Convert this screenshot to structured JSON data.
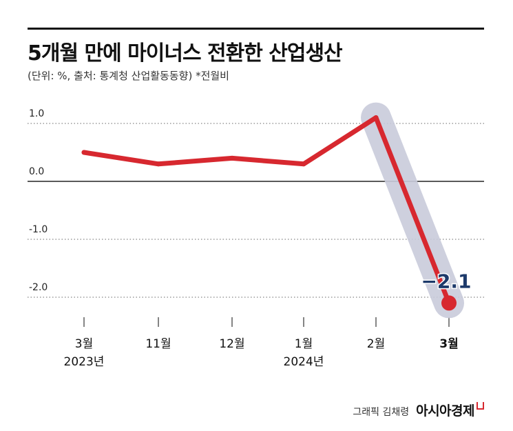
{
  "header": {
    "title": "5개월 만에 마이너스 전환한 산업생산",
    "subtitle": "(단위: %, 출처: 통계청 산업활동동향) *전월비"
  },
  "chart_data": {
    "type": "line",
    "title": "5개월 만에 마이너스 전환한 산업생산",
    "subtitle": "(단위: %, 출처: 통계청 산업활동동향) *전월비",
    "categories": [
      [
        "3월",
        "2023년"
      ],
      [
        "11월",
        ""
      ],
      [
        "12월",
        ""
      ],
      [
        "1월",
        "2024년"
      ],
      [
        "2월",
        ""
      ],
      [
        "3월",
        ""
      ]
    ],
    "series": [
      {
        "values": [
          0.5,
          0.3,
          0.4,
          0.3,
          1.1,
          -2.1
        ]
      }
    ],
    "y_ticks": [
      {
        "value": 1.0,
        "label": "1.0"
      },
      {
        "value": 0.0,
        "label": "0.0"
      },
      {
        "value": -1.0,
        "label": "-1.0"
      },
      {
        "value": -2.0,
        "label": "-2.0"
      }
    ],
    "annotation": {
      "label": "−2.1",
      "index": 5
    },
    "highlight_segment": [
      4,
      5
    ],
    "bold_category_index": 5,
    "colors": {
      "line": "#d7282f",
      "highlight": "#c9cbdb",
      "annotation": "#1d3a6b",
      "grid": "#666666"
    }
  },
  "footer": {
    "credit": "그래픽 김채령",
    "brand": "아시아경제"
  }
}
